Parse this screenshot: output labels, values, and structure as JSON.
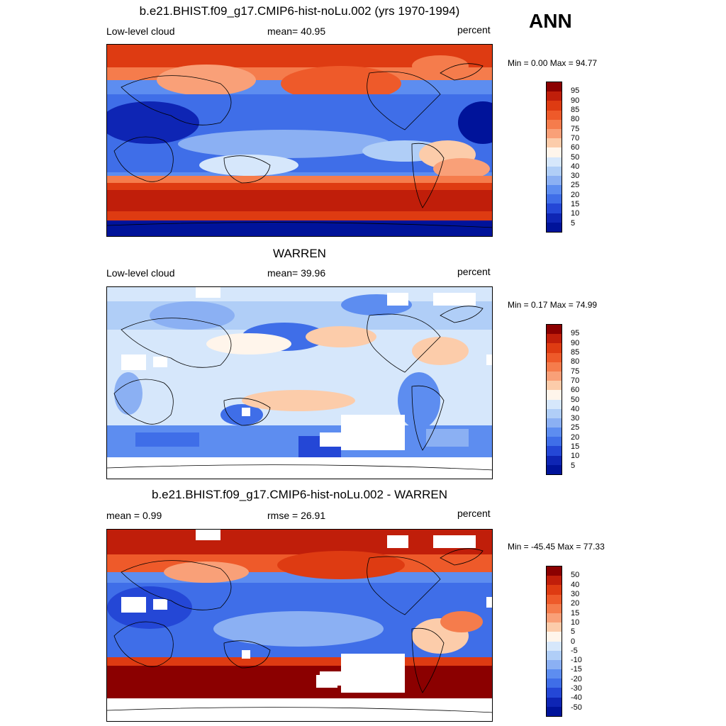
{
  "season": "ANN",
  "panels": [
    {
      "title": "b.e21.BHIST.f09_g17.CMIP6-hist-noLu.002 (yrs 1970-1994)",
      "left_label": "Low-level cloud",
      "center_label": "mean=  40.95",
      "right_label": "percent",
      "minmax": "Min =   0.00 Max =  94.77",
      "kind": "model"
    },
    {
      "title": "WARREN",
      "left_label": "Low-level cloud",
      "center_label": "mean=  39.96",
      "right_label": "percent",
      "minmax": "Min =   0.17 Max =  74.99",
      "kind": "obs"
    },
    {
      "title": "b.e21.BHIST.f09_g17.CMIP6-hist-noLu.002 - WARREN",
      "left_label": "mean =   0.99",
      "center_label": "rmse =  26.91",
      "right_label": "percent",
      "minmax": "Min = -45.45 Max =  77.33",
      "kind": "diff"
    }
  ],
  "colorbar_levels": [
    "95",
    "90",
    "85",
    "80",
    "75",
    "70",
    "60",
    "50",
    "40",
    "30",
    "25",
    "20",
    "15",
    "10",
    "5"
  ],
  "colorbar_colors": [
    "#8b0000",
    "#c01e0a",
    "#de3b12",
    "#ee5a2a",
    "#f57c4c",
    "#f9a078",
    "#fcccaa",
    "#fff5eb",
    "#d6e7fb",
    "#b0cef7",
    "#8bb0f3",
    "#5d8df0",
    "#3f6ee8",
    "#2447d6",
    "#0e25b4",
    "#00139a"
  ],
  "diff_levels": [
    "50",
    "40",
    "30",
    "20",
    "15",
    "10",
    "5",
    "0",
    "-5",
    "-10",
    "-15",
    "-20",
    "-30",
    "-40",
    "-50"
  ],
  "diff_colors": [
    "#8b0000",
    "#c01e0a",
    "#de3b12",
    "#ee5a2a",
    "#f57c4c",
    "#f9a078",
    "#fcccaa",
    "#fff5eb",
    "#d6e7fb",
    "#b0cef7",
    "#8bb0f3",
    "#5d8df0",
    "#3f6ee8",
    "#2447d6",
    "#0e25b4",
    "#00139a"
  ]
}
